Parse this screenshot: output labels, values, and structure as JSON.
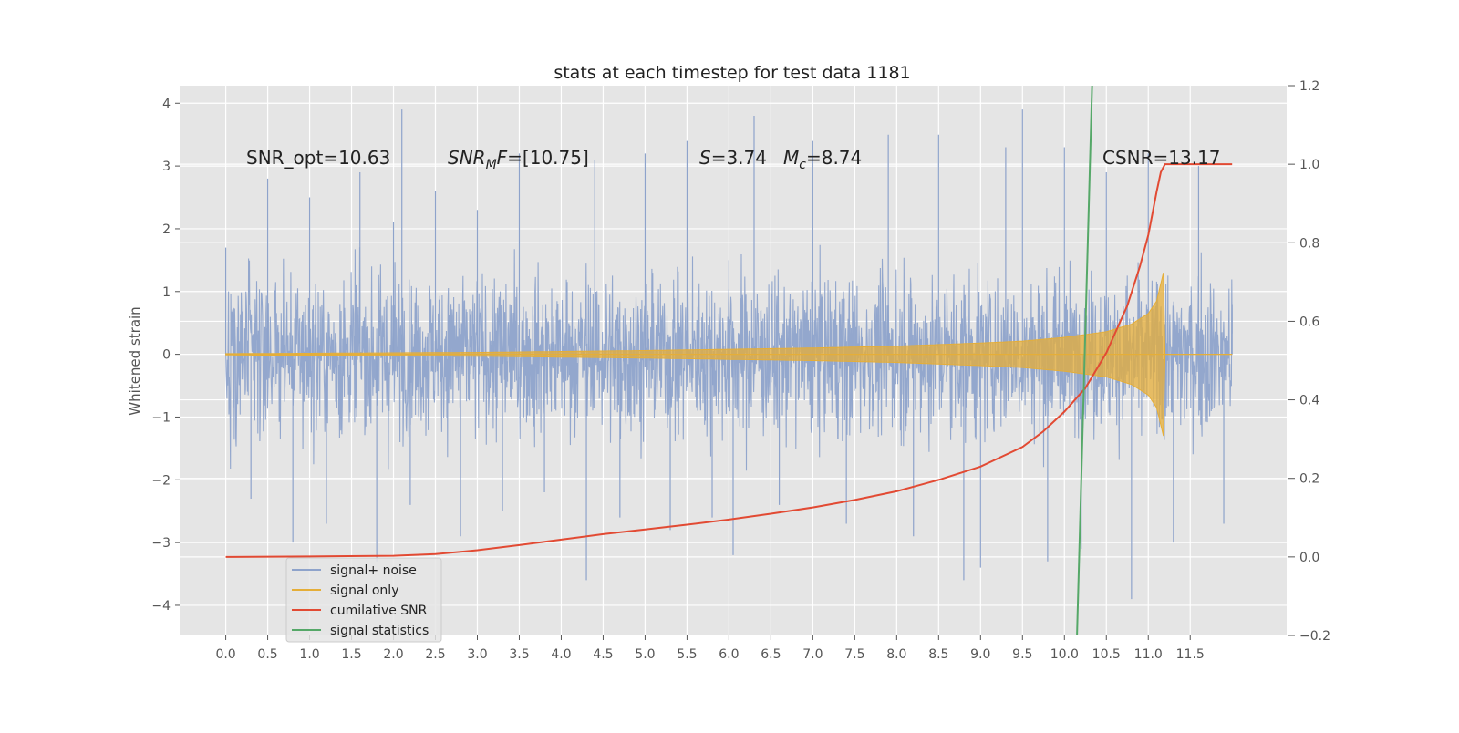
{
  "chart_data": {
    "type": "line",
    "title": "stats at each timestep for test data 1181",
    "ylabel": "Whitened strain",
    "xlabel": "",
    "xlim": [
      -0.55,
      12.65
    ],
    "ylim": [
      -4.48,
      4.28
    ],
    "y2lim": [
      -0.2,
      1.2
    ],
    "x_ticks": [
      0.0,
      0.5,
      1.0,
      1.5,
      2.0,
      2.5,
      3.0,
      3.5,
      4.0,
      4.5,
      5.0,
      5.5,
      6.0,
      6.5,
      7.0,
      7.5,
      8.0,
      8.5,
      9.0,
      9.5,
      10.0,
      10.5,
      11.0,
      11.5
    ],
    "x_tick_labels": [
      "0.0",
      "0.5",
      "1.0",
      "1.5",
      "2.0",
      "2.5",
      "3.0",
      "3.5",
      "4.0",
      "4.5",
      "5.0",
      "5.5",
      "6.0",
      "6.5",
      "7.0",
      "7.5",
      "8.0",
      "8.5",
      "9.0",
      "9.5",
      "10.0",
      "10.5",
      "11.0",
      "11.5"
    ],
    "y_ticks": [
      -4,
      -3,
      -2,
      -1,
      0,
      1,
      2,
      3,
      4
    ],
    "y_tick_labels": [
      "−4",
      "−3",
      "−2",
      "−1",
      "0",
      "1",
      "2",
      "3",
      "4"
    ],
    "y2_ticks": [
      -0.2,
      0.0,
      0.2,
      0.4,
      0.6,
      0.8,
      1.0,
      1.2
    ],
    "y2_tick_labels": [
      "−0.2",
      "0.0",
      "0.2",
      "0.4",
      "0.6",
      "0.8",
      "1.0",
      "1.2"
    ],
    "grid": true,
    "legend_position": "lower-left",
    "annotations": [
      {
        "text": "SNR_opt=10.63",
        "x": 0.2,
        "y": 3.05
      },
      {
        "text": "SNR_MF=[10.75]",
        "x": 2.6,
        "y": 3.05
      },
      {
        "text": "S=3.74   M_c=8.74",
        "x": 5.6,
        "y": 3.05
      },
      {
        "text": "CSNR=13.17",
        "x": 10.4,
        "y": 3.05
      }
    ],
    "series": [
      {
        "name": "signal+ noise",
        "axis": "left",
        "color": "#8ea3cb",
        "x_range": [
          0.0,
          12.0
        ],
        "y_typical_range": [
          -2.0,
          1.8
        ],
        "y_extremes": [
          -4.0,
          3.9
        ],
        "samples": [
          [
            0.0,
            1.7
          ],
          [
            0.3,
            -2.3
          ],
          [
            0.5,
            2.8
          ],
          [
            0.8,
            -3.0
          ],
          [
            1.0,
            2.5
          ],
          [
            1.2,
            -2.7
          ],
          [
            1.6,
            2.9
          ],
          [
            1.8,
            -3.3
          ],
          [
            2.0,
            2.1
          ],
          [
            2.1,
            3.9
          ],
          [
            2.2,
            -2.4
          ],
          [
            2.5,
            2.6
          ],
          [
            2.8,
            -2.9
          ],
          [
            3.0,
            2.3
          ],
          [
            3.3,
            -2.5
          ],
          [
            3.5,
            3.2
          ],
          [
            3.8,
            -2.2
          ],
          [
            4.3,
            -3.6
          ],
          [
            4.4,
            3.1
          ],
          [
            4.7,
            -2.6
          ],
          [
            5.0,
            3.2
          ],
          [
            5.3,
            -2.8
          ],
          [
            5.5,
            3.4
          ],
          [
            5.8,
            -2.6
          ],
          [
            6.0,
            1.5
          ],
          [
            6.05,
            -3.2
          ],
          [
            6.3,
            3.8
          ],
          [
            6.6,
            -2.4
          ],
          [
            7.0,
            3.4
          ],
          [
            7.4,
            -2.7
          ],
          [
            7.9,
            3.5
          ],
          [
            8.2,
            -2.9
          ],
          [
            8.5,
            3.5
          ],
          [
            8.8,
            -3.6
          ],
          [
            9.0,
            -3.4
          ],
          [
            9.3,
            3.3
          ],
          [
            9.5,
            3.9
          ],
          [
            9.8,
            -3.3
          ],
          [
            10.0,
            3.3
          ],
          [
            10.2,
            -3.1
          ],
          [
            10.5,
            2.9
          ],
          [
            10.8,
            -3.9
          ],
          [
            11.0,
            3.2
          ],
          [
            11.3,
            -3.0
          ],
          [
            11.6,
            3.0
          ],
          [
            11.9,
            -2.7
          ],
          [
            12.0,
            0.8
          ]
        ]
      },
      {
        "name": "signal only",
        "axis": "left",
        "color": "#e5ae38",
        "x_range": [
          0.0,
          12.0
        ],
        "amplitude_envelope": [
          [
            0.0,
            0.01
          ],
          [
            3.0,
            0.03
          ],
          [
            5.0,
            0.06
          ],
          [
            6.0,
            0.08
          ],
          [
            7.0,
            0.1
          ],
          [
            8.0,
            0.13
          ],
          [
            9.0,
            0.18
          ],
          [
            9.5,
            0.21
          ],
          [
            10.0,
            0.27
          ],
          [
            10.5,
            0.36
          ],
          [
            10.8,
            0.48
          ],
          [
            11.0,
            0.65
          ],
          [
            11.1,
            0.85
          ],
          [
            11.18,
            1.3
          ],
          [
            11.2,
            0.0
          ],
          [
            12.0,
            0.0
          ]
        ]
      },
      {
        "name": "cumilative SNR",
        "axis": "right",
        "color": "#e24a33",
        "x": [
          0.0,
          1.0,
          2.0,
          2.5,
          3.0,
          3.5,
          4.0,
          4.5,
          5.0,
          5.5,
          6.0,
          6.5,
          7.0,
          7.5,
          8.0,
          8.5,
          9.0,
          9.5,
          9.75,
          10.0,
          10.25,
          10.5,
          10.75,
          10.9,
          11.0,
          11.1,
          11.15,
          11.2,
          12.0
        ],
        "y": [
          0.0,
          0.001,
          0.003,
          0.007,
          0.017,
          0.03,
          0.044,
          0.058,
          0.07,
          0.082,
          0.095,
          0.11,
          0.126,
          0.145,
          0.167,
          0.196,
          0.23,
          0.28,
          0.32,
          0.37,
          0.43,
          0.52,
          0.64,
          0.74,
          0.82,
          0.93,
          0.98,
          1.0,
          1.0
        ]
      },
      {
        "name": "signal statistics",
        "axis": "right",
        "color": "#55a868",
        "x": [
          10.15,
          10.33
        ],
        "y": [
          -0.2,
          1.2
        ]
      }
    ]
  }
}
